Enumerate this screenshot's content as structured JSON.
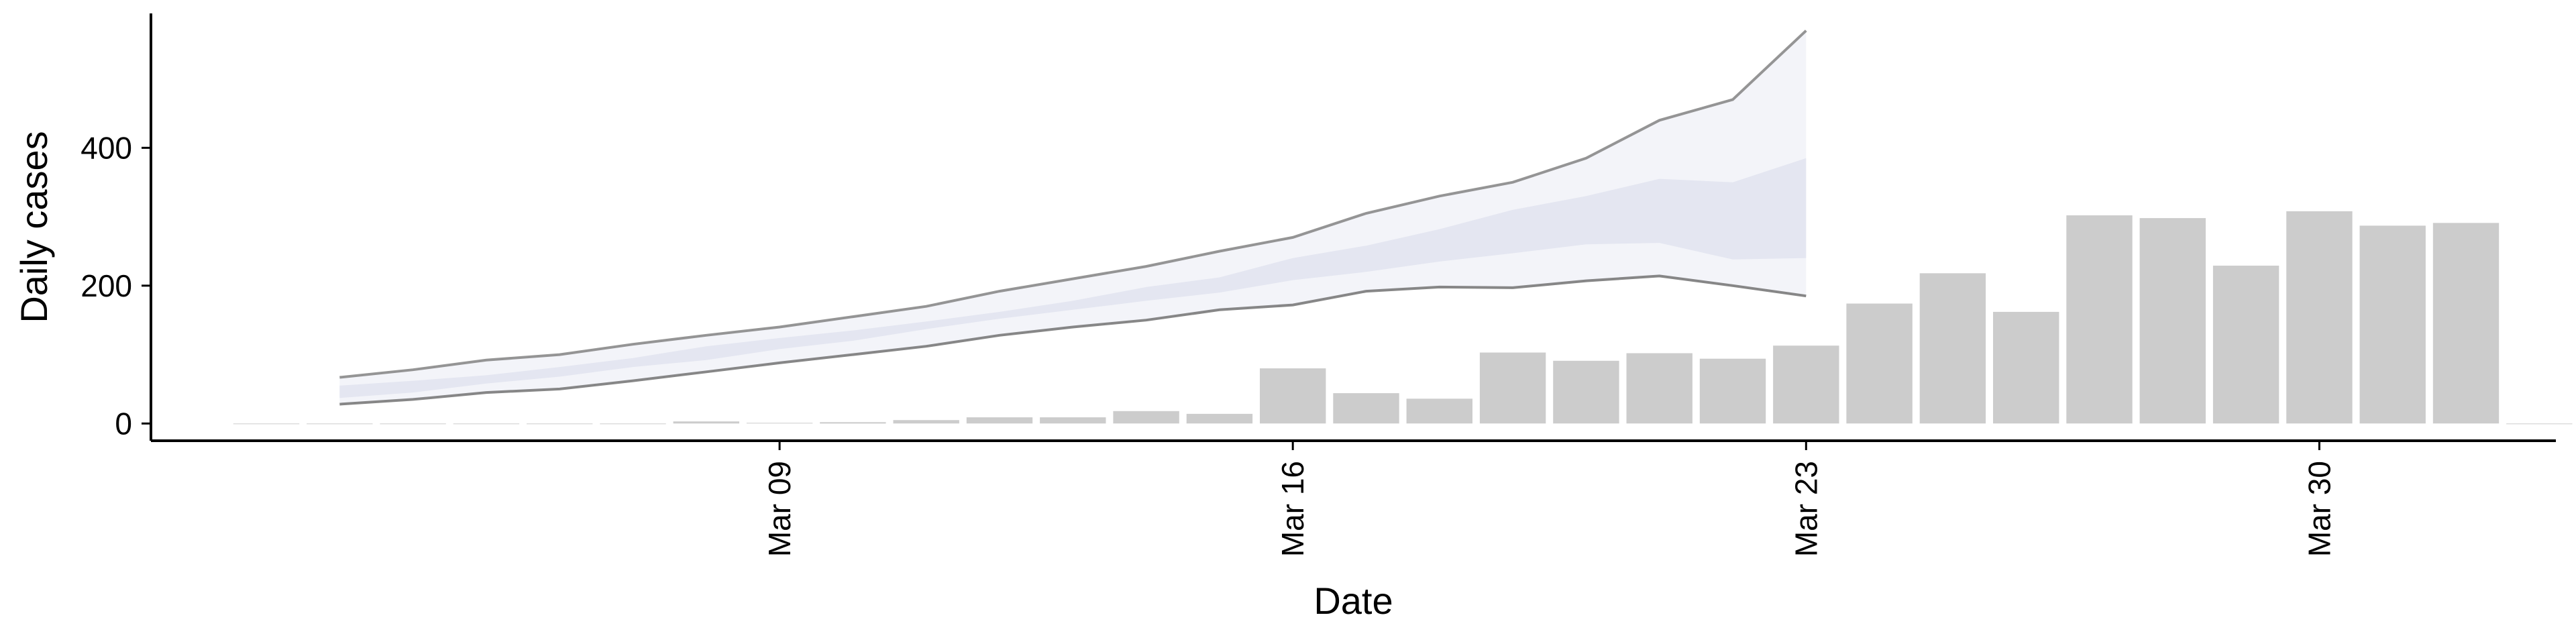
{
  "chart_data": {
    "type": "bar",
    "xlabel": "Date",
    "ylabel": "Daily cases",
    "ylim": [
      -25,
      595
    ],
    "yticks": [
      0,
      200,
      400
    ],
    "xticks": [
      "Mar 09",
      "Mar 16",
      "Mar 23",
      "Mar 30"
    ],
    "grid": false,
    "x": [
      "Mar 02",
      "Mar 03",
      "Mar 04",
      "Mar 05",
      "Mar 06",
      "Mar 07",
      "Mar 08",
      "Mar 09",
      "Mar 10",
      "Mar 11",
      "Mar 12",
      "Mar 13",
      "Mar 14",
      "Mar 15",
      "Mar 16",
      "Mar 17",
      "Mar 18",
      "Mar 19",
      "Mar 20",
      "Mar 21",
      "Mar 22",
      "Mar 23",
      "Mar 24",
      "Mar 25",
      "Mar 26",
      "Mar 27",
      "Mar 28",
      "Mar 29",
      "Mar 30",
      "Mar 31",
      "Apr 01",
      "Apr 02"
    ],
    "values": [
      0,
      0,
      0,
      0,
      0,
      0,
      3,
      1,
      2,
      5,
      9,
      9,
      18,
      14,
      80,
      44,
      36,
      103,
      91,
      102,
      94,
      113,
      174,
      218,
      162,
      302,
      298,
      229,
      308,
      287,
      291,
      0
    ],
    "forecast": {
      "x": [
        "Mar 03",
        "Mar 04",
        "Mar 05",
        "Mar 06",
        "Mar 07",
        "Mar 08",
        "Mar 09",
        "Mar 10",
        "Mar 11",
        "Mar 12",
        "Mar 13",
        "Mar 14",
        "Mar 15",
        "Mar 16",
        "Mar 17",
        "Mar 18",
        "Mar 19",
        "Mar 20",
        "Mar 21",
        "Mar 22",
        "Mar 23",
        "Mar 24"
      ],
      "outer_lower": [
        28,
        35,
        45,
        50,
        62,
        75,
        88,
        100,
        112,
        128,
        140,
        150,
        165,
        172,
        192,
        198,
        197,
        207,
        214,
        200,
        185,
        null
      ],
      "outer_upper": [
        67,
        78,
        92,
        100,
        115,
        128,
        140,
        155,
        170,
        192,
        210,
        228,
        250,
        270,
        305,
        330,
        350,
        385,
        440,
        470,
        570,
        null
      ],
      "inner_lower": [
        37,
        45,
        58,
        68,
        82,
        92,
        108,
        120,
        137,
        152,
        165,
        178,
        190,
        208,
        220,
        235,
        247,
        260,
        262,
        238,
        240,
        null
      ],
      "inner_upper": [
        55,
        62,
        70,
        82,
        95,
        112,
        124,
        135,
        148,
        162,
        178,
        198,
        212,
        240,
        258,
        282,
        310,
        330,
        355,
        350,
        385,
        null
      ],
      "band_colors": {
        "outer": "#f3f4f9",
        "inner": "#dfe1ed",
        "core": "#c8cce0"
      },
      "line_colors": {
        "outer_upper": "#8a8a8a",
        "outer_lower": "#7a7a7a"
      }
    },
    "bar_color": "#cccccc",
    "axis_color": "#000000"
  }
}
